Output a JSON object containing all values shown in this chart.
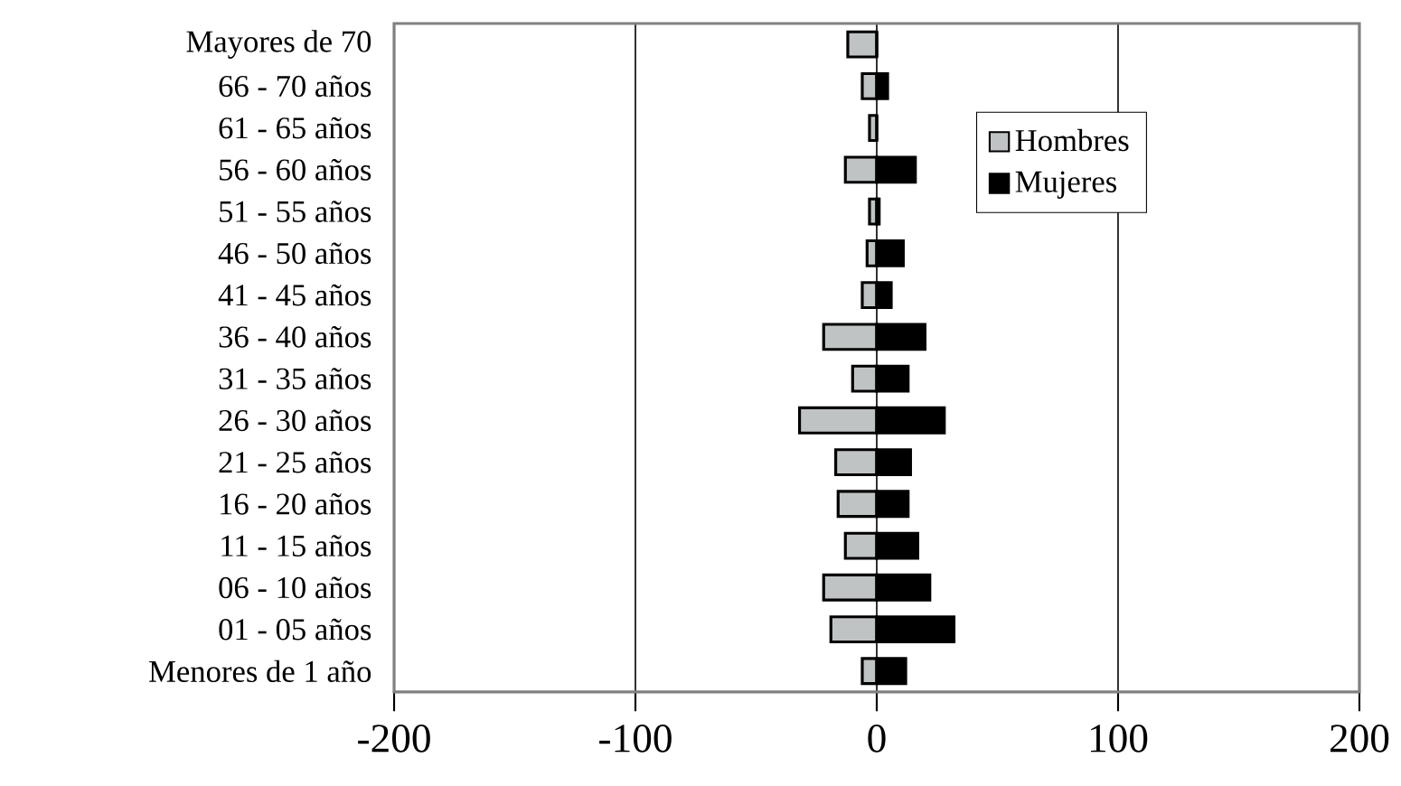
{
  "chart_data": {
    "type": "bar",
    "orientation": "horizontal",
    "categories": [
      "Mayores de 70",
      "66 - 70 años",
      "61 - 65 años",
      "56 - 60 años",
      "51 - 55 años",
      "46 - 50 años",
      "41 - 45 años",
      "36 - 40 años",
      "31 - 35 años",
      "26 - 30 años",
      "21 - 25 años",
      "16 - 20 años",
      "11 - 15 años",
      "06 - 10 años",
      "01 - 05 años",
      "Menores de 1 año"
    ],
    "series": [
      {
        "name": "Hombres",
        "color": "#bfc3c3",
        "values": [
          -12,
          -6,
          -3,
          -13,
          -3,
          -4,
          -6,
          -22,
          -10,
          -32,
          -17,
          -16,
          -13,
          -22,
          -19,
          -6
        ]
      },
      {
        "name": "Mujeres",
        "color": "#000000",
        "values": [
          0,
          4.5,
          0,
          16,
          1,
          11,
          6,
          20,
          13,
          28,
          14,
          13,
          17,
          22,
          32,
          12
        ]
      }
    ],
    "stacked": true,
    "xlim": [
      -200,
      200
    ],
    "xticks": [
      -200,
      -100,
      0,
      100,
      200
    ],
    "grid": "x",
    "legend": "top right"
  }
}
